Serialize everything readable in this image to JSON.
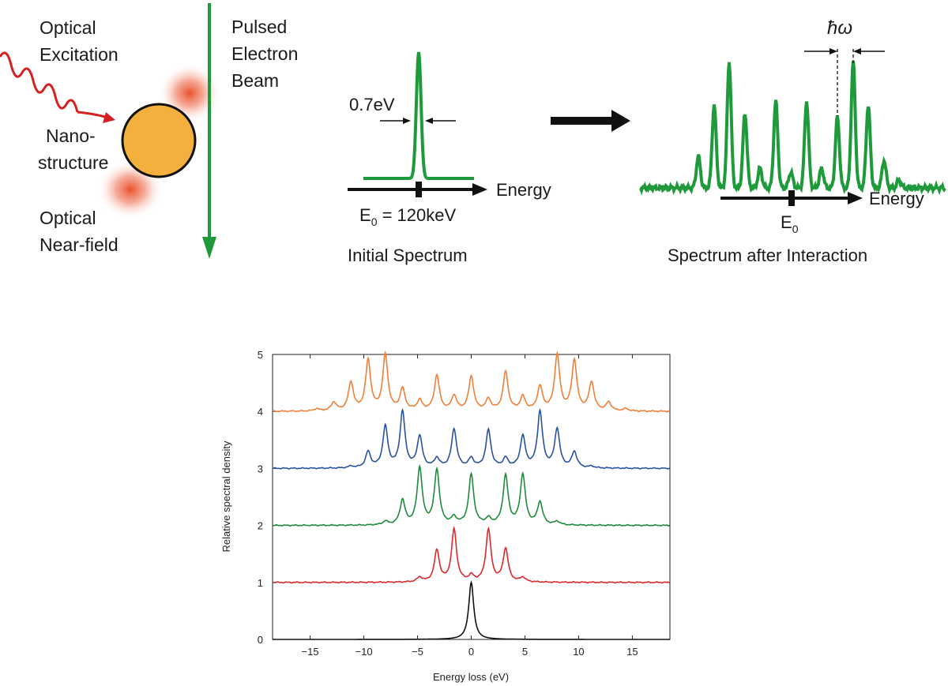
{
  "schematic": {
    "labels": {
      "optical_excitation": [
        "Optical",
        "Excitation"
      ],
      "pulsed_beam": [
        "Pulsed",
        "Electron",
        "Beam"
      ],
      "nanostructure": [
        "Nano-",
        "structure"
      ],
      "near_field": [
        "Optical",
        "Near-field"
      ],
      "width": "0.7eV",
      "energy_axis": "Energy",
      "e0_initial": "E",
      "e0_initial_sub": "0",
      "e0_initial_value": " = 120keV",
      "initial_caption": "Initial Spectrum",
      "hbar_omega": "ħω",
      "energy_axis_after": "Energy",
      "e0_after": "E",
      "e0_after_sub": "0",
      "after_caption": "Spectrum after Interaction"
    },
    "colors": {
      "excitation": "#d62020",
      "beam": "#1f9a3b",
      "particle": "#f3b03c",
      "near_field": "#e8481f",
      "spectrum": "#1f9a3b",
      "arrow": "#111111"
    }
  },
  "chart_data": {
    "type": "line",
    "xlabel": "Energy loss (eV)",
    "ylabel": "Relative spectral density",
    "xlim": [
      -18.5,
      18.5
    ],
    "ylim": [
      0,
      5
    ],
    "xticks": [
      -15,
      -10,
      -5,
      0,
      5,
      10,
      15
    ],
    "yticks": [
      0,
      1,
      2,
      3,
      4,
      5
    ],
    "photon_energy_eV": 1.6,
    "peak_width_eV": 0.28,
    "grid": false,
    "legend": "none",
    "series": [
      {
        "baseline": 0,
        "color": "#111111",
        "peaks": [
          {
            "x": 0,
            "y": 1.0
          }
        ]
      },
      {
        "baseline": 1,
        "color": "#e0282a",
        "peaks": [
          {
            "x": -4.8,
            "y": 0.08
          },
          {
            "x": -3.2,
            "y": 0.55
          },
          {
            "x": -1.6,
            "y": 0.92
          },
          {
            "x": 0.0,
            "y": 0.1
          },
          {
            "x": 1.6,
            "y": 0.92
          },
          {
            "x": 3.2,
            "y": 0.58
          },
          {
            "x": 4.8,
            "y": 0.08
          }
        ]
      },
      {
        "baseline": 2,
        "color": "#1f8a3b",
        "peaks": [
          {
            "x": -8.0,
            "y": 0.06
          },
          {
            "x": -6.4,
            "y": 0.43
          },
          {
            "x": -4.8,
            "y": 1.0
          },
          {
            "x": -3.2,
            "y": 0.96
          },
          {
            "x": -1.6,
            "y": 0.12
          },
          {
            "x": 0.0,
            "y": 0.88
          },
          {
            "x": 1.6,
            "y": 0.1
          },
          {
            "x": 3.2,
            "y": 0.86
          },
          {
            "x": 4.8,
            "y": 0.88
          },
          {
            "x": 6.4,
            "y": 0.4
          },
          {
            "x": 8.0,
            "y": 0.06
          }
        ]
      },
      {
        "baseline": 3,
        "color": "#2952a3",
        "peaks": [
          {
            "x": -11.2,
            "y": 0.03
          },
          {
            "x": -9.6,
            "y": 0.28
          },
          {
            "x": -8.0,
            "y": 0.72
          },
          {
            "x": -6.4,
            "y": 0.98
          },
          {
            "x": -4.8,
            "y": 0.55
          },
          {
            "x": -3.2,
            "y": 0.16
          },
          {
            "x": -1.6,
            "y": 0.68
          },
          {
            "x": 0.0,
            "y": 0.16
          },
          {
            "x": 1.6,
            "y": 0.66
          },
          {
            "x": 3.2,
            "y": 0.16
          },
          {
            "x": 4.8,
            "y": 0.55
          },
          {
            "x": 6.4,
            "y": 0.98
          },
          {
            "x": 8.0,
            "y": 0.68
          },
          {
            "x": 9.6,
            "y": 0.28
          },
          {
            "x": 11.2,
            "y": 0.03
          }
        ]
      },
      {
        "baseline": 4,
        "color": "#f07f3a",
        "peaks": [
          {
            "x": -14.4,
            "y": 0.04
          },
          {
            "x": -12.8,
            "y": 0.15
          },
          {
            "x": -11.2,
            "y": 0.5
          },
          {
            "x": -9.6,
            "y": 0.88
          },
          {
            "x": -8.0,
            "y": 0.98
          },
          {
            "x": -6.4,
            "y": 0.38
          },
          {
            "x": -4.8,
            "y": 0.18
          },
          {
            "x": -3.2,
            "y": 0.62
          },
          {
            "x": -1.6,
            "y": 0.26
          },
          {
            "x": 0.0,
            "y": 0.6
          },
          {
            "x": 1.6,
            "y": 0.2
          },
          {
            "x": 3.2,
            "y": 0.68
          },
          {
            "x": 4.8,
            "y": 0.24
          },
          {
            "x": 6.4,
            "y": 0.42
          },
          {
            "x": 8.0,
            "y": 0.98
          },
          {
            "x": 9.6,
            "y": 0.88
          },
          {
            "x": 11.2,
            "y": 0.5
          },
          {
            "x": 12.8,
            "y": 0.15
          },
          {
            "x": 14.4,
            "y": 0.04
          }
        ]
      }
    ]
  }
}
